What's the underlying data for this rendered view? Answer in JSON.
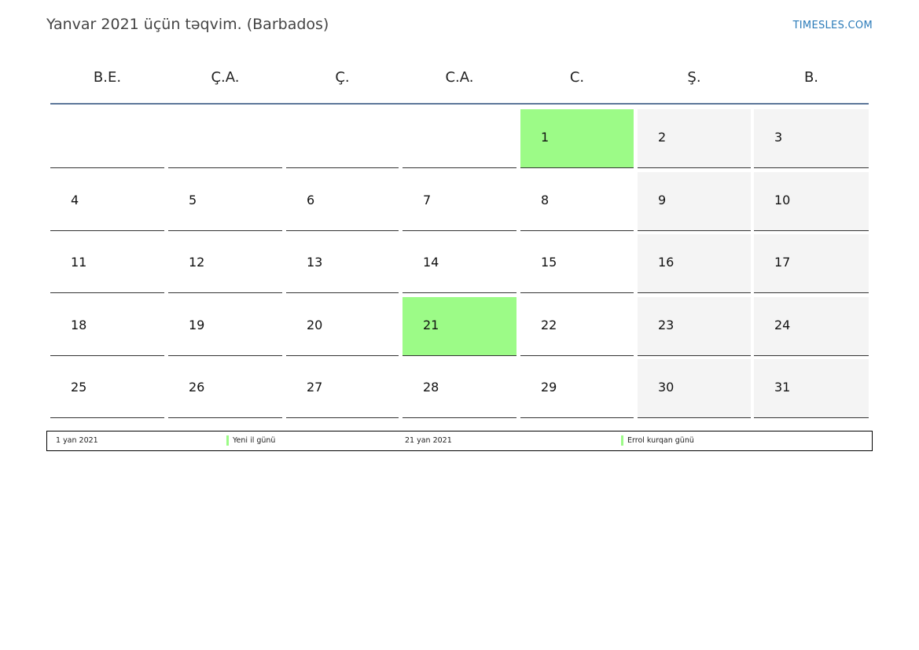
{
  "header": {
    "title": "Yanvar 2021 üçün təqvim. (Barbados)",
    "brand": "TIMESLES.COM"
  },
  "weekdays": [
    "B.E.",
    "Ç.A.",
    "Ç.",
    "C.A.",
    "C.",
    "Ş.",
    "B."
  ],
  "weeks": [
    [
      "",
      "",
      "",
      "",
      "1",
      "2",
      "3"
    ],
    [
      "4",
      "5",
      "6",
      "7",
      "8",
      "9",
      "10"
    ],
    [
      "11",
      "12",
      "13",
      "14",
      "15",
      "16",
      "17"
    ],
    [
      "18",
      "19",
      "20",
      "21",
      "22",
      "23",
      "24"
    ],
    [
      "25",
      "26",
      "27",
      "28",
      "29",
      "30",
      "31"
    ]
  ],
  "holiday_days": [
    "1",
    "21"
  ],
  "weekend_columns": [
    5,
    6
  ],
  "legend": [
    {
      "date": "1 yan 2021",
      "name": "Yeni il günü"
    },
    {
      "date": "21 yan 2021",
      "name": "Errol kurqan günü"
    }
  ],
  "colors": {
    "holiday": "#9cfb87",
    "weekend": "#f4f4f4",
    "header_rule": "#5c7799",
    "brand": "#2b7bb9"
  }
}
